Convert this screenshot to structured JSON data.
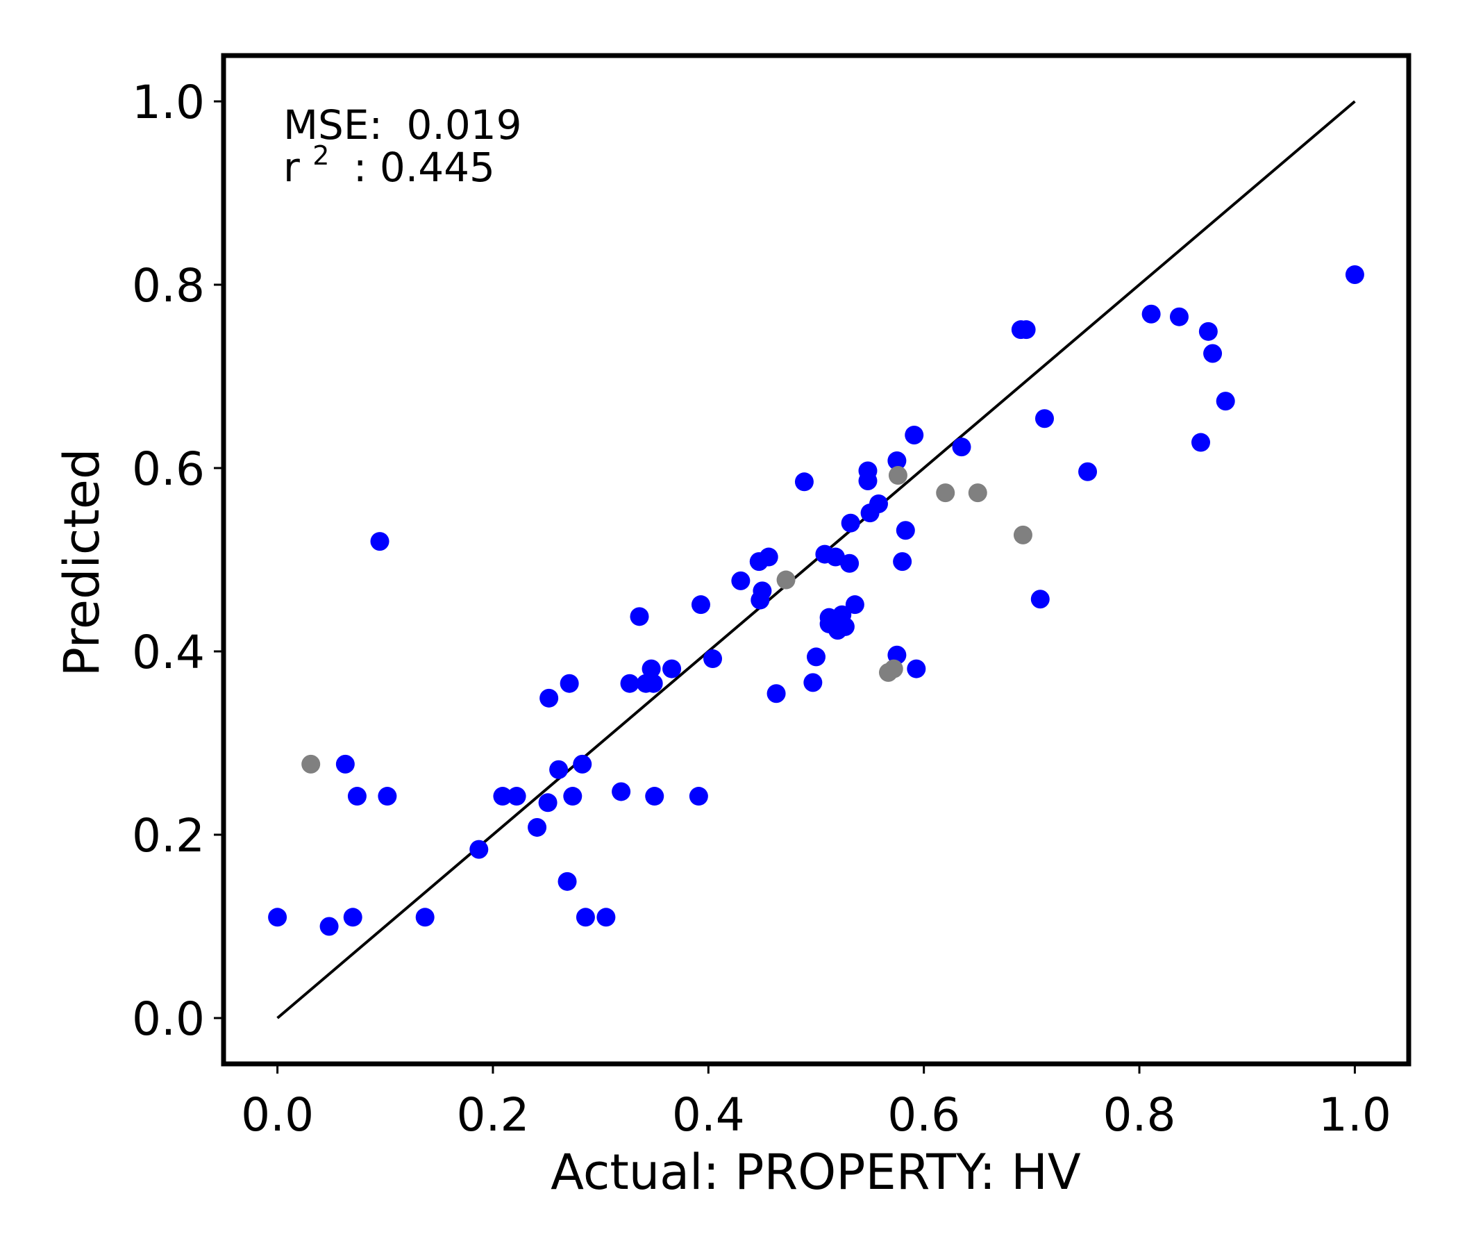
{
  "chart_data": {
    "type": "scatter",
    "xlabel": "Actual: PROPERTY: HV",
    "ylabel": "Predicted",
    "xlim": [
      -0.05,
      1.05
    ],
    "ylim": [
      -0.05,
      1.05
    ],
    "xticks": [
      "0.0",
      "0.2",
      "0.4",
      "0.6",
      "0.8",
      "1.0"
    ],
    "yticks": [
      "0.0",
      "0.2",
      "0.4",
      "0.6",
      "0.8",
      "1.0"
    ],
    "grid": false,
    "legend": false,
    "reference_line": {
      "from": [
        0,
        0
      ],
      "to": [
        1,
        1
      ],
      "color": "#000000"
    },
    "annotations": {
      "mse_label": "MSE:",
      "mse_value": "0.019",
      "r2_label": "r",
      "r2_exponent": "2",
      "r2_value": ": 0.445"
    },
    "series": [
      {
        "color": "#0000ff",
        "points": [
          [
            0.0,
            0.11
          ],
          [
            0.048,
            0.1
          ],
          [
            0.07,
            0.11
          ],
          [
            0.063,
            0.277
          ],
          [
            0.074,
            0.242
          ],
          [
            0.102,
            0.242
          ],
          [
            0.095,
            0.52
          ],
          [
            0.137,
            0.11
          ],
          [
            0.187,
            0.184
          ],
          [
            0.209,
            0.242
          ],
          [
            0.222,
            0.242
          ],
          [
            0.241,
            0.208
          ],
          [
            0.251,
            0.235
          ],
          [
            0.252,
            0.349
          ],
          [
            0.261,
            0.271
          ],
          [
            0.269,
            0.149
          ],
          [
            0.271,
            0.365
          ],
          [
            0.274,
            0.242
          ],
          [
            0.283,
            0.277
          ],
          [
            0.286,
            0.11
          ],
          [
            0.305,
            0.11
          ],
          [
            0.319,
            0.247
          ],
          [
            0.327,
            0.365
          ],
          [
            0.336,
            0.438
          ],
          [
            0.342,
            0.365
          ],
          [
            0.347,
            0.381
          ],
          [
            0.349,
            0.365
          ],
          [
            0.35,
            0.242
          ],
          [
            0.366,
            0.381
          ],
          [
            0.391,
            0.242
          ],
          [
            0.393,
            0.451
          ],
          [
            0.404,
            0.392
          ],
          [
            0.43,
            0.477
          ],
          [
            0.447,
            0.498
          ],
          [
            0.448,
            0.456
          ],
          [
            0.45,
            0.466
          ],
          [
            0.456,
            0.503
          ],
          [
            0.463,
            0.354
          ],
          [
            0.489,
            0.585
          ],
          [
            0.497,
            0.366
          ],
          [
            0.5,
            0.394
          ],
          [
            0.508,
            0.506
          ],
          [
            0.512,
            0.43
          ],
          [
            0.512,
            0.437
          ],
          [
            0.518,
            0.503
          ],
          [
            0.52,
            0.423
          ],
          [
            0.524,
            0.44
          ],
          [
            0.527,
            0.427
          ],
          [
            0.531,
            0.496
          ],
          [
            0.532,
            0.54
          ],
          [
            0.536,
            0.451
          ],
          [
            0.548,
            0.597
          ],
          [
            0.548,
            0.586
          ],
          [
            0.55,
            0.551
          ],
          [
            0.558,
            0.561
          ],
          [
            0.575,
            0.608
          ],
          [
            0.575,
            0.396
          ],
          [
            0.58,
            0.498
          ],
          [
            0.583,
            0.532
          ],
          [
            0.591,
            0.636
          ],
          [
            0.593,
            0.381
          ],
          [
            0.635,
            0.623
          ],
          [
            0.69,
            0.751
          ],
          [
            0.695,
            0.751
          ],
          [
            0.708,
            0.457
          ],
          [
            0.712,
            0.654
          ],
          [
            0.752,
            0.596
          ],
          [
            0.811,
            0.768
          ],
          [
            0.837,
            0.765
          ],
          [
            0.857,
            0.628
          ],
          [
            0.864,
            0.749
          ],
          [
            0.868,
            0.725
          ],
          [
            0.88,
            0.673
          ],
          [
            1.0,
            0.811
          ]
        ]
      },
      {
        "color": "#808080",
        "points": [
          [
            0.031,
            0.277
          ],
          [
            0.472,
            0.478
          ],
          [
            0.567,
            0.377
          ],
          [
            0.572,
            0.381
          ],
          [
            0.576,
            0.592
          ],
          [
            0.62,
            0.573
          ],
          [
            0.65,
            0.573
          ],
          [
            0.692,
            0.527
          ]
        ]
      }
    ]
  }
}
